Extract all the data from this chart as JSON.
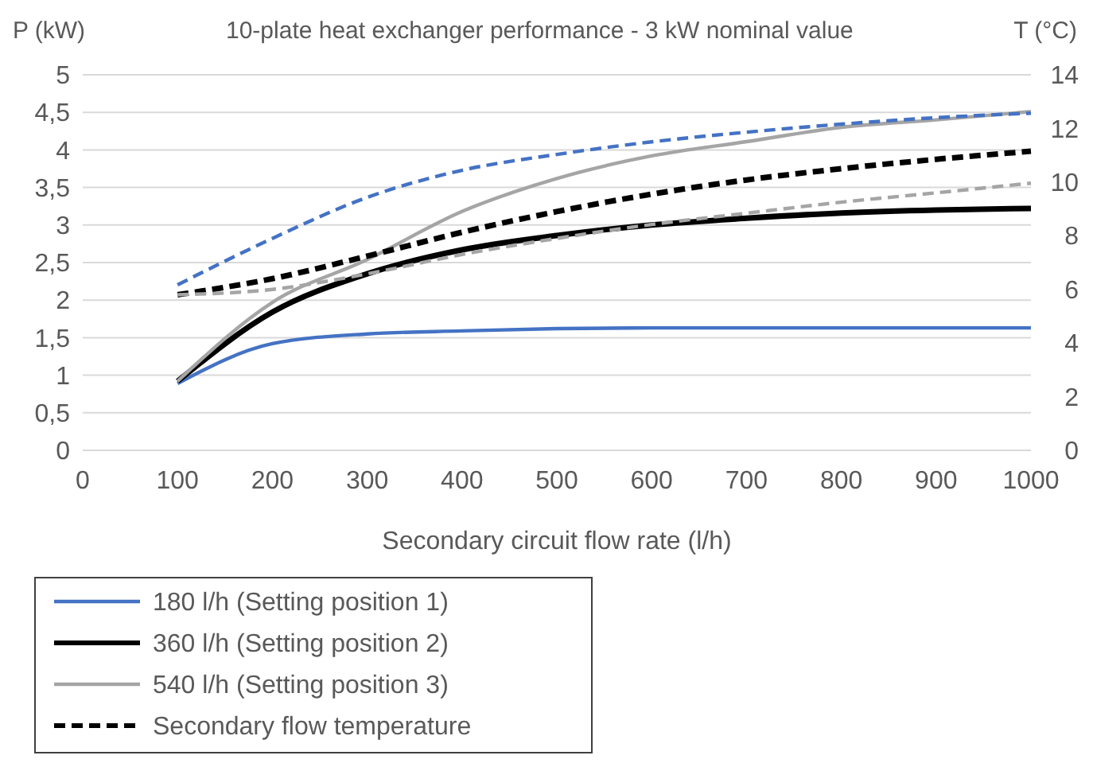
{
  "chart_data": {
    "type": "line",
    "title": "10-plate heat exchanger performance  - 3 kW nominal value",
    "xlabel": "Secondary circuit flow rate (l/h)",
    "ylabel": "P (kW)",
    "y2label": "T (°C)",
    "x": [
      100,
      200,
      300,
      400,
      500,
      600,
      700,
      800,
      900,
      1000
    ],
    "xlim": [
      0,
      1000
    ],
    "xticks": [
      0,
      100,
      200,
      300,
      400,
      500,
      600,
      700,
      800,
      900,
      1000
    ],
    "ylim": [
      0,
      5
    ],
    "yticks": [
      0,
      {
        "value": 0.5,
        "label": "0,5"
      },
      1,
      {
        "value": 1.5,
        "label": "1,5"
      },
      2,
      {
        "value": 2.5,
        "label": "2,5"
      },
      3,
      {
        "value": 3.5,
        "label": "3,5"
      },
      4,
      {
        "value": 4.5,
        "label": "4,5"
      },
      5
    ],
    "y2lim": [
      0,
      14
    ],
    "y2ticks": [
      0,
      2,
      4,
      6,
      8,
      10,
      12,
      14
    ],
    "grid": "y",
    "legend": "bottom",
    "marker": "none",
    "series": [
      {
        "name": "180 l/h (Setting position 1)",
        "color": "#4472c4",
        "line_style": "solid",
        "values": [
          0.89,
          1.42,
          1.55,
          1.59,
          1.62,
          1.63,
          1.63,
          1.63,
          1.63,
          1.63
        ]
      },
      {
        "name": "360 l/h (Setting position 2)",
        "color": "#000000",
        "line_style": "solid",
        "values": [
          0.92,
          1.84,
          2.35,
          2.67,
          2.86,
          3.0,
          3.09,
          3.16,
          3.2,
          3.22
        ]
      },
      {
        "name": "540 l/h (Setting position 3)",
        "color": "#a5a5a5",
        "line_style": "solid",
        "values": [
          0.92,
          1.97,
          2.54,
          3.18,
          3.62,
          3.92,
          4.11,
          4.3,
          4.4,
          4.51
        ]
      },
      {
        "name": "Secondary flow temperature",
        "color": "#000000",
        "line_style": "dashed",
        "axis": "y2",
        "values": [
          5.8,
          6.4,
          7.24,
          8.13,
          8.9,
          9.55,
          10.08,
          10.5,
          10.85,
          11.15
        ]
      },
      {
        "color": "#4472c4",
        "line_style": "dashed",
        "axis": "y2",
        "values": [
          6.17,
          7.9,
          9.43,
          10.44,
          11.03,
          11.5,
          11.86,
          12.16,
          12.4,
          12.57
        ]
      },
      {
        "color": "#a5a5a5",
        "line_style": "dashed",
        "axis": "y2",
        "values": [
          5.8,
          6.0,
          6.58,
          7.3,
          7.9,
          8.42,
          8.84,
          9.25,
          9.6,
          9.96
        ]
      }
    ]
  }
}
